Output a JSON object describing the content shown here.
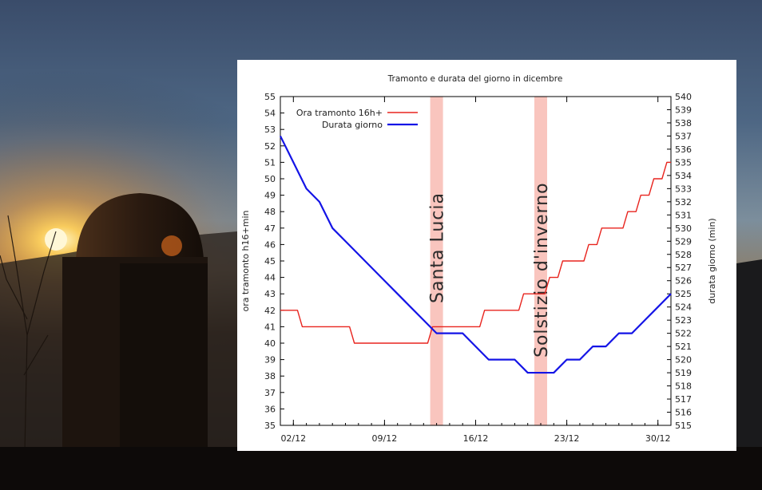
{
  "chart_data": {
    "type": "line",
    "title": "Tramonto e durata del giorno in dicembre",
    "ylabel": "ora tramonto h16+min",
    "y2label": "durata giorno (min)",
    "xlabel": "",
    "xlim": [
      1,
      31
    ],
    "ylim": [
      35,
      55
    ],
    "y2lim": [
      515,
      540
    ],
    "x_tick_labels": [
      {
        "day": 2,
        "label": "02/12"
      },
      {
        "day": 9,
        "label": "09/12"
      },
      {
        "day": 16,
        "label": "16/12"
      },
      {
        "day": 23,
        "label": "23/12"
      },
      {
        "day": 30,
        "label": "30/12"
      }
    ],
    "y_ticks": [
      35,
      36,
      37,
      38,
      39,
      40,
      41,
      42,
      43,
      44,
      45,
      46,
      47,
      48,
      49,
      50,
      51,
      52,
      53,
      54,
      55
    ],
    "y2_ticks": [
      515,
      516,
      517,
      518,
      519,
      520,
      521,
      522,
      523,
      524,
      525,
      526,
      527,
      528,
      529,
      530,
      531,
      532,
      533,
      534,
      535,
      536,
      537,
      538,
      539,
      540
    ],
    "legend_position": "top-left",
    "grid": false,
    "series": [
      {
        "name": "Ora tramonto 16h+",
        "axis": "left",
        "color": "#e8241e",
        "x": [
          1,
          2,
          3,
          4,
          5,
          6,
          7,
          8,
          9,
          10,
          11,
          12,
          13,
          14,
          15,
          16,
          17,
          18,
          19,
          20,
          21,
          22,
          23,
          24,
          25,
          26,
          27,
          28,
          29,
          30,
          31
        ],
        "values": [
          42,
          42,
          41,
          41,
          41,
          41,
          40,
          40,
          40,
          40,
          40,
          40,
          41,
          41,
          41,
          41,
          42,
          42,
          42,
          43,
          43,
          44,
          45,
          45,
          46,
          47,
          47,
          48,
          49,
          50,
          51
        ]
      },
      {
        "name": "Durata giorno",
        "axis": "right",
        "color": "#1414e6",
        "x": [
          1,
          2,
          3,
          4,
          5,
          6,
          7,
          8,
          9,
          10,
          11,
          12,
          13,
          14,
          15,
          16,
          17,
          18,
          19,
          20,
          21,
          22,
          23,
          24,
          25,
          26,
          27,
          28,
          29,
          30,
          31
        ],
        "values": [
          537,
          535,
          533,
          532,
          530,
          529,
          528,
          527,
          526,
          525,
          524,
          523,
          522,
          522,
          522,
          521,
          520,
          520,
          520,
          519,
          519,
          519,
          520,
          520,
          521,
          521,
          522,
          522,
          523,
          524,
          525
        ]
      }
    ],
    "annotations": [
      {
        "label": "Santa Lucia",
        "day": 13,
        "band_color": "#f9c5be"
      },
      {
        "label": "Solstizio d'inverno",
        "day": 21,
        "band_color": "#f9c5be"
      }
    ]
  }
}
